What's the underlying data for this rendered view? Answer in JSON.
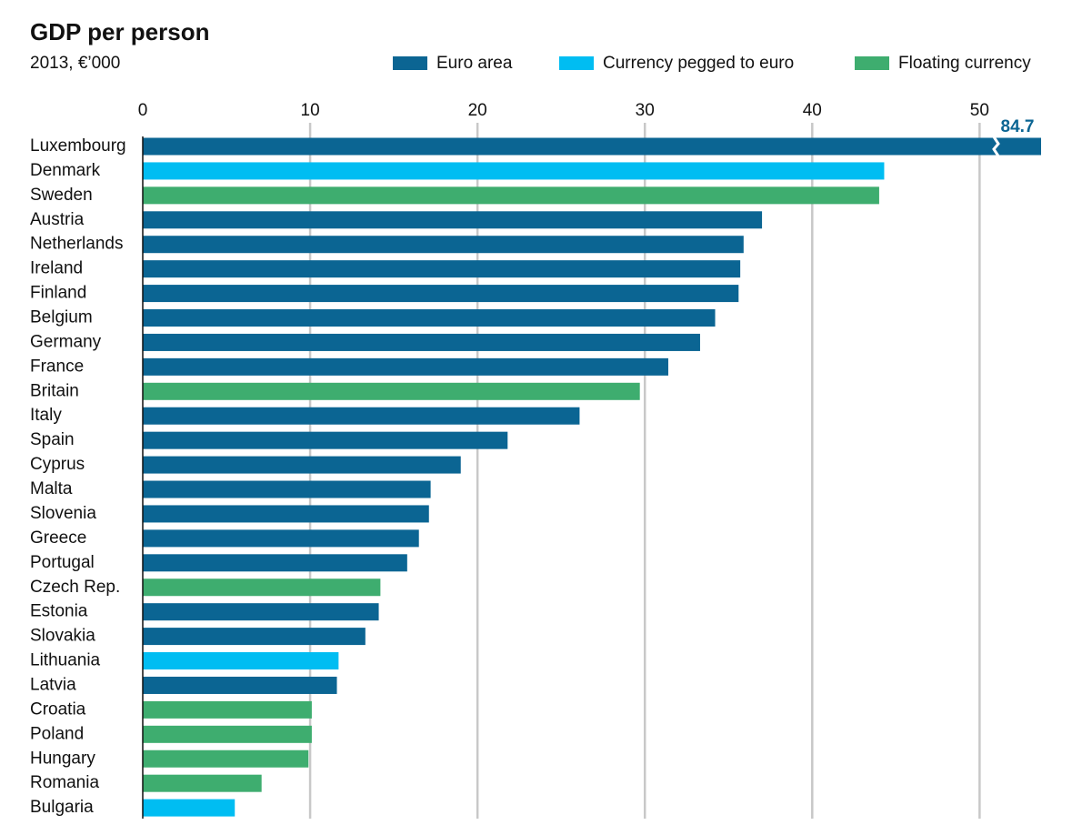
{
  "chart_data": {
    "type": "bar",
    "orientation": "horizontal",
    "title": "GDP per person",
    "subtitle": "2013, €’000",
    "categories": [
      "Luxembourg",
      "Denmark",
      "Sweden",
      "Austria",
      "Netherlands",
      "Ireland",
      "Finland",
      "Belgium",
      "Germany",
      "France",
      "Britain",
      "Italy",
      "Spain",
      "Cyprus",
      "Malta",
      "Slovenia",
      "Greece",
      "Portugal",
      "Czech Rep.",
      "Estonia",
      "Slovakia",
      "Lithuania",
      "Latvia",
      "Croatia",
      "Poland",
      "Hungary",
      "Romania",
      "Bulgaria"
    ],
    "series": [
      {
        "name": "Euro area",
        "color": "#0b6593",
        "values": [
          84.7,
          null,
          null,
          37.0,
          35.9,
          35.7,
          35.6,
          34.2,
          33.3,
          31.4,
          null,
          26.1,
          21.8,
          19.0,
          17.2,
          17.1,
          16.5,
          15.8,
          null,
          14.1,
          13.3,
          null,
          11.6,
          null,
          null,
          null,
          null,
          null
        ],
        "value_labels": [
          "84.7",
          null,
          null,
          null,
          null,
          null,
          null,
          null,
          null,
          null,
          null,
          null,
          null,
          null,
          null,
          null,
          null,
          null,
          null,
          null,
          null,
          null,
          null,
          null,
          null,
          null,
          null,
          null
        ]
      },
      {
        "name": "Currency pegged to euro",
        "color": "#00bdf2",
        "values": [
          null,
          44.3,
          null,
          null,
          null,
          null,
          null,
          null,
          null,
          null,
          null,
          null,
          null,
          null,
          null,
          null,
          null,
          null,
          null,
          null,
          null,
          11.7,
          null,
          null,
          null,
          null,
          null,
          5.5
        ]
      },
      {
        "name": "Floating currency",
        "color": "#3ead6f",
        "values": [
          null,
          null,
          44.0,
          null,
          null,
          null,
          null,
          null,
          null,
          null,
          29.7,
          null,
          null,
          null,
          null,
          null,
          null,
          null,
          14.2,
          null,
          null,
          null,
          null,
          10.1,
          10.1,
          9.9,
          7.1,
          null
        ]
      }
    ],
    "xlim": [
      0,
      54
    ],
    "xticks": [
      0,
      10,
      20,
      30,
      40,
      50
    ],
    "grid": true,
    "legend": "top-right"
  }
}
